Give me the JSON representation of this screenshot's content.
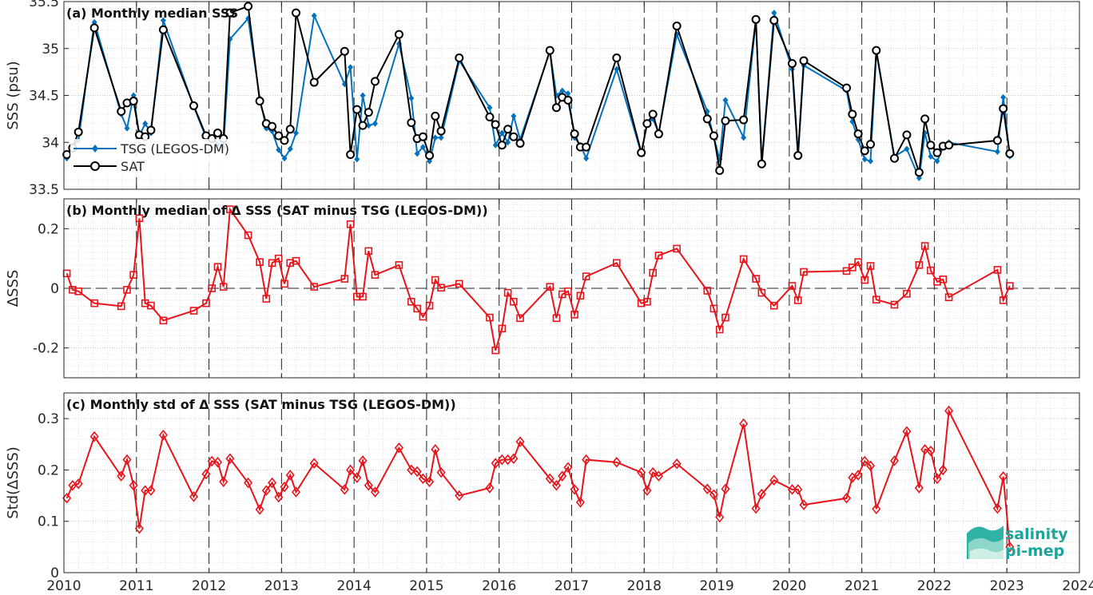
{
  "colors": {
    "tsg": "#0072BD",
    "sat": "#000000",
    "delta": "#E8141B",
    "logo": "#1aa59a"
  },
  "x_ticks": [
    "2010",
    "2011",
    "2012",
    "2013",
    "2014",
    "2015",
    "2016",
    "2017",
    "2018",
    "2019",
    "2020",
    "2021",
    "2022",
    "2023",
    "2024"
  ],
  "logo": {
    "line1": "salinity",
    "line2": "pi-mep"
  },
  "chart_data": [
    {
      "type": "line",
      "title": "(a) Monthly median SSS",
      "xlabel": "",
      "ylabel": "SSS (psu)",
      "xlim": [
        2010,
        2024
      ],
      "ylim": [
        33.5,
        35.5
      ],
      "y_ticks": [
        "33.5",
        "34",
        "34.5",
        "35",
        "35.5"
      ],
      "grid": "on",
      "legend": "bottom-left",
      "series": [
        {
          "name": "TSG (LEGOS-DM)",
          "marker": "diamond",
          "x": [
            2010.04,
            2010.12,
            2010.2,
            2010.42,
            2010.79,
            2010.87,
            2010.96,
            2011.04,
            2011.12,
            2011.2,
            2011.37,
            2011.79,
            2011.96,
            2012.04,
            2012.12,
            2012.2,
            2012.29,
            2012.54,
            2012.7,
            2012.79,
            2012.87,
            2012.96,
            2013.04,
            2013.12,
            2013.2,
            2013.45,
            2013.87,
            2013.95,
            2014.04,
            2014.12,
            2014.2,
            2014.29,
            2014.62,
            2014.79,
            2014.87,
            2014.95,
            2015.04,
            2015.12,
            2015.2,
            2015.45,
            2015.87,
            2015.95,
            2016.04,
            2016.12,
            2016.2,
            2016.29,
            2016.7,
            2016.79,
            2016.87,
            2016.95,
            2017.04,
            2017.12,
            2017.2,
            2017.62,
            2017.96,
            2018.04,
            2018.12,
            2018.2,
            2018.45,
            2018.87,
            2018.96,
            2019.04,
            2019.12,
            2019.37,
            2019.54,
            2019.62,
            2019.79,
            2020.04,
            2020.12,
            2020.2,
            2020.79,
            2020.87,
            2020.95,
            2021.04,
            2021.12,
            2021.2,
            2021.45,
            2021.62,
            2021.79,
            2021.87,
            2021.95,
            2022.04,
            2022.12,
            2022.2,
            2022.87,
            2022.95,
            2023.04
          ],
          "y": [
            33.83,
            33.95,
            34.02,
            35.28,
            34.3,
            34.15,
            34.5,
            34.07,
            34.2,
            34.1,
            35.3,
            34.38,
            34.05,
            34.05,
            33.98,
            33.95,
            35.1,
            35.32,
            34.47,
            34.15,
            34.12,
            33.92,
            33.83,
            33.93,
            34.1,
            35.35,
            34.62,
            34.8,
            33.82,
            34.5,
            34.18,
            34.2,
            35.05,
            34.47,
            33.88,
            33.95,
            33.8,
            34.05,
            34.05,
            34.87,
            34.37,
            33.97,
            34.1,
            34.0,
            34.28,
            34.03,
            34.97,
            34.5,
            34.55,
            34.52,
            34.05,
            33.97,
            33.83,
            34.78,
            33.88,
            34.2,
            34.25,
            34.1,
            35.15,
            34.33,
            34.05,
            33.82,
            34.45,
            34.05,
            35.3,
            33.78,
            35.38,
            34.78,
            33.85,
            34.82,
            34.55,
            34.22,
            34.03,
            33.82,
            33.8,
            34.96,
            33.85,
            33.93,
            33.62,
            34.1,
            33.85,
            33.8,
            33.95,
            34.0,
            33.9,
            34.48,
            33.85
          ]
        },
        {
          "name": "SAT",
          "marker": "circle",
          "x": [
            2010.04,
            2010.12,
            2010.2,
            2010.42,
            2010.79,
            2010.87,
            2010.96,
            2011.04,
            2011.12,
            2011.2,
            2011.37,
            2011.79,
            2011.96,
            2012.04,
            2012.12,
            2012.2,
            2012.29,
            2012.54,
            2012.7,
            2012.79,
            2012.87,
            2012.96,
            2013.04,
            2013.12,
            2013.2,
            2013.45,
            2013.87,
            2013.95,
            2014.04,
            2014.12,
            2014.2,
            2014.29,
            2014.62,
            2014.79,
            2014.87,
            2014.95,
            2015.04,
            2015.12,
            2015.2,
            2015.45,
            2015.87,
            2015.95,
            2016.04,
            2016.12,
            2016.2,
            2016.29,
            2016.7,
            2016.79,
            2016.87,
            2016.95,
            2017.04,
            2017.12,
            2017.2,
            2017.62,
            2017.96,
            2018.04,
            2018.12,
            2018.2,
            2018.45,
            2018.87,
            2018.96,
            2019.04,
            2019.12,
            2019.37,
            2019.54,
            2019.62,
            2019.79,
            2020.04,
            2020.12,
            2020.2,
            2020.79,
            2020.87,
            2020.95,
            2021.04,
            2021.12,
            2021.2,
            2021.45,
            2021.62,
            2021.79,
            2021.87,
            2021.95,
            2022.04,
            2022.12,
            2022.2,
            2022.87,
            2022.95,
            2023.04
          ],
          "y": [
            33.87,
            33.94,
            34.11,
            35.22,
            34.33,
            34.42,
            34.44,
            34.08,
            34.06,
            34.13,
            35.2,
            34.39,
            34.07,
            34.04,
            34.1,
            34.04,
            35.38,
            35.45,
            34.44,
            34.2,
            34.17,
            34.07,
            34.02,
            34.14,
            35.38,
            34.64,
            34.97,
            33.87,
            34.35,
            34.18,
            34.32,
            34.65,
            35.15,
            34.21,
            34.04,
            34.06,
            33.86,
            34.28,
            34.12,
            34.9,
            34.27,
            34.19,
            33.97,
            34.14,
            34.06,
            33.99,
            34.98,
            34.37,
            34.48,
            34.45,
            34.09,
            33.95,
            33.95,
            34.9,
            33.89,
            34.2,
            34.3,
            34.09,
            35.24,
            34.25,
            34.07,
            33.7,
            34.23,
            34.24,
            35.31,
            33.77,
            35.3,
            34.84,
            33.86,
            34.87,
            34.58,
            34.3,
            34.09,
            33.91,
            33.98,
            34.98,
            33.83,
            34.08,
            33.68,
            34.25,
            33.97,
            33.89,
            33.96,
            33.97,
            34.02,
            34.36,
            33.88
          ]
        }
      ]
    },
    {
      "type": "line",
      "title": "(b) Monthly median of Δ SSS (SAT minus TSG (LEGOS-DM))",
      "xlabel": "",
      "ylabel": "ΔSSS",
      "xlim": [
        2010,
        2024
      ],
      "ylim": [
        -0.3,
        0.3
      ],
      "y_ticks": [
        "-0.2",
        "0",
        "0.2"
      ],
      "grid": "on",
      "series": [
        {
          "marker": "square",
          "x": [
            2010.04,
            2010.12,
            2010.2,
            2010.42,
            2010.79,
            2010.87,
            2010.96,
            2011.04,
            2011.12,
            2011.2,
            2011.37,
            2011.79,
            2011.96,
            2012.04,
            2012.12,
            2012.2,
            2012.29,
            2012.54,
            2012.7,
            2012.79,
            2012.87,
            2012.96,
            2013.04,
            2013.12,
            2013.2,
            2013.45,
            2013.87,
            2013.95,
            2014.04,
            2014.12,
            2014.2,
            2014.29,
            2014.62,
            2014.79,
            2014.87,
            2014.95,
            2015.04,
            2015.12,
            2015.2,
            2015.45,
            2015.87,
            2015.95,
            2016.04,
            2016.12,
            2016.2,
            2016.29,
            2016.7,
            2016.79,
            2016.87,
            2016.95,
            2017.04,
            2017.12,
            2017.2,
            2017.62,
            2017.96,
            2018.04,
            2018.12,
            2018.2,
            2018.45,
            2018.87,
            2018.96,
            2019.04,
            2019.12,
            2019.37,
            2019.54,
            2019.62,
            2019.79,
            2020.04,
            2020.12,
            2020.2,
            2020.79,
            2020.87,
            2020.95,
            2021.04,
            2021.12,
            2021.2,
            2021.45,
            2021.62,
            2021.79,
            2021.87,
            2021.95,
            2022.04,
            2022.12,
            2022.2,
            2022.87,
            2022.95,
            2023.04
          ],
          "y": [
            0.05,
            -0.005,
            -0.01,
            -0.05,
            -0.06,
            -0.005,
            0.045,
            0.235,
            -0.05,
            -0.058,
            -0.108,
            -0.075,
            -0.05,
            0.0,
            0.072,
            0.005,
            0.265,
            0.178,
            0.088,
            -0.035,
            0.085,
            0.1,
            0.015,
            0.085,
            0.092,
            0.005,
            0.032,
            0.215,
            -0.028,
            -0.028,
            0.125,
            0.045,
            0.078,
            -0.045,
            -0.068,
            -0.095,
            -0.058,
            0.028,
            0.002,
            0.015,
            -0.098,
            -0.208,
            -0.135,
            -0.015,
            -0.045,
            -0.1,
            0.005,
            -0.1,
            -0.02,
            -0.01,
            -0.088,
            -0.025,
            0.04,
            0.085,
            -0.05,
            -0.045,
            0.052,
            0.11,
            0.133,
            -0.008,
            -0.068,
            -0.138,
            -0.098,
            0.098,
            0.032,
            -0.015,
            -0.058,
            0.008,
            -0.04,
            0.055,
            0.058,
            0.07,
            0.088,
            0.028,
            0.075,
            -0.038,
            -0.055,
            -0.018,
            0.078,
            0.142,
            0.06,
            0.022,
            0.03,
            -0.03,
            0.062,
            -0.04,
            0.008
          ]
        }
      ]
    },
    {
      "type": "line",
      "title": "(c) Monthly std of Δ SSS (SAT minus TSG (LEGOS-DM))",
      "xlabel": "",
      "ylabel": "Std(ΔSSS)",
      "xlim": [
        2010,
        2024
      ],
      "ylim": [
        0,
        0.35
      ],
      "y_ticks": [
        "0",
        "0.1",
        "0.2",
        "0.3"
      ],
      "grid": "on",
      "series": [
        {
          "marker": "diamond",
          "x": [
            2010.04,
            2010.12,
            2010.2,
            2010.42,
            2010.79,
            2010.87,
            2010.96,
            2011.04,
            2011.12,
            2011.2,
            2011.37,
            2011.79,
            2011.96,
            2012.04,
            2012.12,
            2012.2,
            2012.29,
            2012.54,
            2012.7,
            2012.79,
            2012.87,
            2012.96,
            2013.04,
            2013.12,
            2013.2,
            2013.45,
            2013.87,
            2013.95,
            2014.04,
            2014.12,
            2014.2,
            2014.29,
            2014.62,
            2014.79,
            2014.87,
            2014.95,
            2015.04,
            2015.12,
            2015.2,
            2015.45,
            2015.87,
            2015.95,
            2016.04,
            2016.12,
            2016.2,
            2016.29,
            2016.7,
            2016.79,
            2016.87,
            2016.95,
            2017.04,
            2017.12,
            2017.2,
            2017.62,
            2017.96,
            2018.04,
            2018.12,
            2018.2,
            2018.45,
            2018.87,
            2018.96,
            2019.04,
            2019.12,
            2019.37,
            2019.54,
            2019.62,
            2019.79,
            2020.04,
            2020.12,
            2020.2,
            2020.79,
            2020.87,
            2020.95,
            2021.04,
            2021.12,
            2021.2,
            2021.45,
            2021.62,
            2021.79,
            2021.87,
            2021.95,
            2022.04,
            2022.12,
            2022.2,
            2022.87,
            2022.95,
            2023.04
          ],
          "y": [
            0.145,
            0.17,
            0.173,
            0.265,
            0.188,
            0.22,
            0.17,
            0.086,
            0.16,
            0.16,
            0.268,
            0.148,
            0.192,
            0.217,
            0.215,
            0.177,
            0.222,
            0.175,
            0.123,
            0.16,
            0.175,
            0.147,
            0.167,
            0.19,
            0.157,
            0.213,
            0.162,
            0.2,
            0.185,
            0.218,
            0.17,
            0.157,
            0.243,
            0.2,
            0.197,
            0.183,
            0.177,
            0.24,
            0.195,
            0.15,
            0.165,
            0.213,
            0.22,
            0.22,
            0.222,
            0.255,
            0.183,
            0.17,
            0.188,
            0.205,
            0.162,
            0.137,
            0.22,
            0.215,
            0.195,
            0.16,
            0.195,
            0.188,
            0.212,
            0.163,
            0.152,
            0.108,
            0.163,
            0.29,
            0.125,
            0.153,
            0.18,
            0.162,
            0.162,
            0.132,
            0.145,
            0.185,
            0.19,
            0.217,
            0.208,
            0.124,
            0.218,
            0.275,
            0.165,
            0.24,
            0.237,
            0.183,
            0.2,
            0.315,
            0.125,
            0.187,
            0.05
          ]
        }
      ]
    }
  ]
}
